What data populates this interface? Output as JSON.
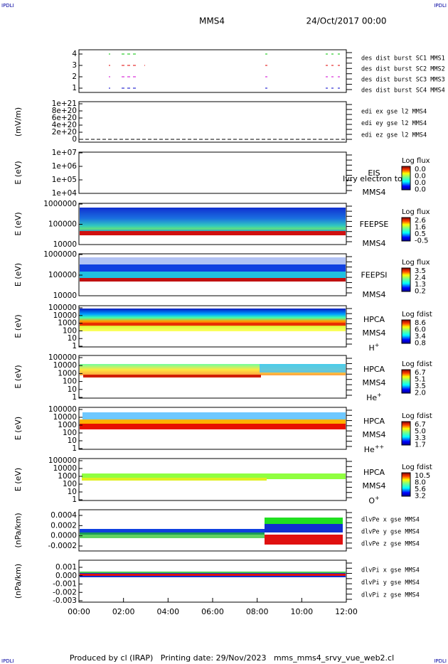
{
  "header": {
    "corner_tag": "IPDLI",
    "mission": "MMS4",
    "date": "24/Oct/2017 00:00"
  },
  "panels": [
    {
      "yticks": [
        "4",
        "3",
        "2",
        "1"
      ],
      "legend": [
        {
          "text": "des dist burst SC1 MMS1",
          "color": "#0000c8"
        },
        {
          "text": "des dist burst SC2 MMS2",
          "color": "#d000d0"
        },
        {
          "text": "des dist burst SC3 MMS3",
          "color": "#e00000"
        },
        {
          "text": "des dist burst SC4 MMS4",
          "color": "#00c000"
        }
      ]
    },
    {
      "ylabel": "(mV/m)",
      "yticks": [
        "1e+21",
        "8e+20",
        "6e+20",
        "4e+20",
        "2e+20",
        "0"
      ],
      "legend": [
        {
          "text": "edi ex gse l2 MMS4",
          "color": "#e00000"
        },
        {
          "text": "edi ey gse l2 MMS4",
          "color": "#00c000"
        },
        {
          "text": "edi ez gse l2 MMS4",
          "color": "#0000c8"
        }
      ]
    },
    {
      "ylabel": "E (eV)",
      "yticks": [
        "1e+07",
        "1e+06",
        "1e+05",
        "1e+04"
      ],
      "labels": [
        "EIS",
        "MMS4"
      ],
      "overlay": "Ivry electron to",
      "colorbar": {
        "title": "Log flux",
        "labels": [
          "0.0",
          "0.0",
          "0.0",
          "0.0"
        ]
      }
    },
    {
      "ylabel": "E (eV)",
      "yticks": [
        "1000000",
        "100000",
        "10000"
      ],
      "labels": [
        "FEEPSE",
        "MMS4"
      ],
      "colorbar": {
        "title": "Log flux",
        "labels": [
          "2.6",
          "1.6",
          "0.5",
          "-0.5"
        ]
      }
    },
    {
      "ylabel": "E (eV)",
      "yticks": [
        "1000000",
        "100000",
        "10000"
      ],
      "labels": [
        "FEEPSI",
        "MMS4"
      ],
      "colorbar": {
        "title": "Log flux",
        "labels": [
          "3.5",
          "2.4",
          "1.3",
          "0.2"
        ]
      }
    },
    {
      "ylabel": "E (eV)",
      "yticks": [
        "100000",
        "10000",
        "1000",
        "100",
        "10",
        "1"
      ],
      "labels": [
        "HPCA",
        "MMS4"
      ],
      "species": {
        "base": "H",
        "sup": "+"
      },
      "colorbar": {
        "title": "Log fdist",
        "labels": [
          "8.6",
          "6.0",
          "3.4",
          "0.8"
        ]
      }
    },
    {
      "ylabel": "E (eV)",
      "yticks": [
        "100000",
        "10000",
        "1000",
        "100",
        "10",
        "1"
      ],
      "labels": [
        "HPCA",
        "MMS4"
      ],
      "species": {
        "base": "He",
        "sup": "+"
      },
      "colorbar": {
        "title": "Log fdist",
        "labels": [
          "6.7",
          "5.1",
          "3.5",
          "2.0"
        ]
      }
    },
    {
      "ylabel": "E (eV)",
      "yticks": [
        "100000",
        "10000",
        "1000",
        "100",
        "10",
        "1"
      ],
      "labels": [
        "HPCA",
        "MMS4"
      ],
      "species": {
        "base": "He",
        "sup": "++"
      },
      "colorbar": {
        "title": "Log fdist",
        "labels": [
          "6.7",
          "5.0",
          "3.3",
          "1.7"
        ]
      }
    },
    {
      "ylabel": "E (eV)",
      "yticks": [
        "100000",
        "10000",
        "1000",
        "100",
        "10",
        "1"
      ],
      "labels": [
        "HPCA",
        "MMS4"
      ],
      "species": {
        "base": "O",
        "sup": "+"
      },
      "colorbar": {
        "title": "Log fdist",
        "labels": [
          "10.5",
          "8.0",
          "5.6",
          "3.2"
        ]
      }
    },
    {
      "ylabel": "(nPa/km)",
      "yticks": [
        "0.0004",
        "0.0002",
        "0.0000",
        "-0.0002"
      ],
      "legend": [
        {
          "text": "dlvPe x gse MMS4",
          "color": "#e00000"
        },
        {
          "text": "dlvPe y gse MMS4",
          "color": "#00c000"
        },
        {
          "text": "dlvPe z gse MMS4",
          "color": "#0000c8"
        }
      ]
    },
    {
      "ylabel": "(nPa/km)",
      "yticks": [
        "0.001",
        "0.000",
        "-0.001",
        "-0.002",
        "-0.003"
      ],
      "legend": [
        {
          "text": "dlvPi x gse MMS4",
          "color": "#e00000"
        },
        {
          "text": "dlvPi y gse MMS4",
          "color": "#00c000"
        },
        {
          "text": "dlvPi z gse MMS4",
          "color": "#0000c8"
        }
      ]
    }
  ],
  "xticks": [
    "00:00",
    "02:00",
    "04:00",
    "06:00",
    "08:00",
    "10:00",
    "12:00"
  ],
  "footer": "Produced by cl (IRAP)   Printing date: 29/Nov/2023   mms_mms4_srvy_vue_web2.cl"
}
